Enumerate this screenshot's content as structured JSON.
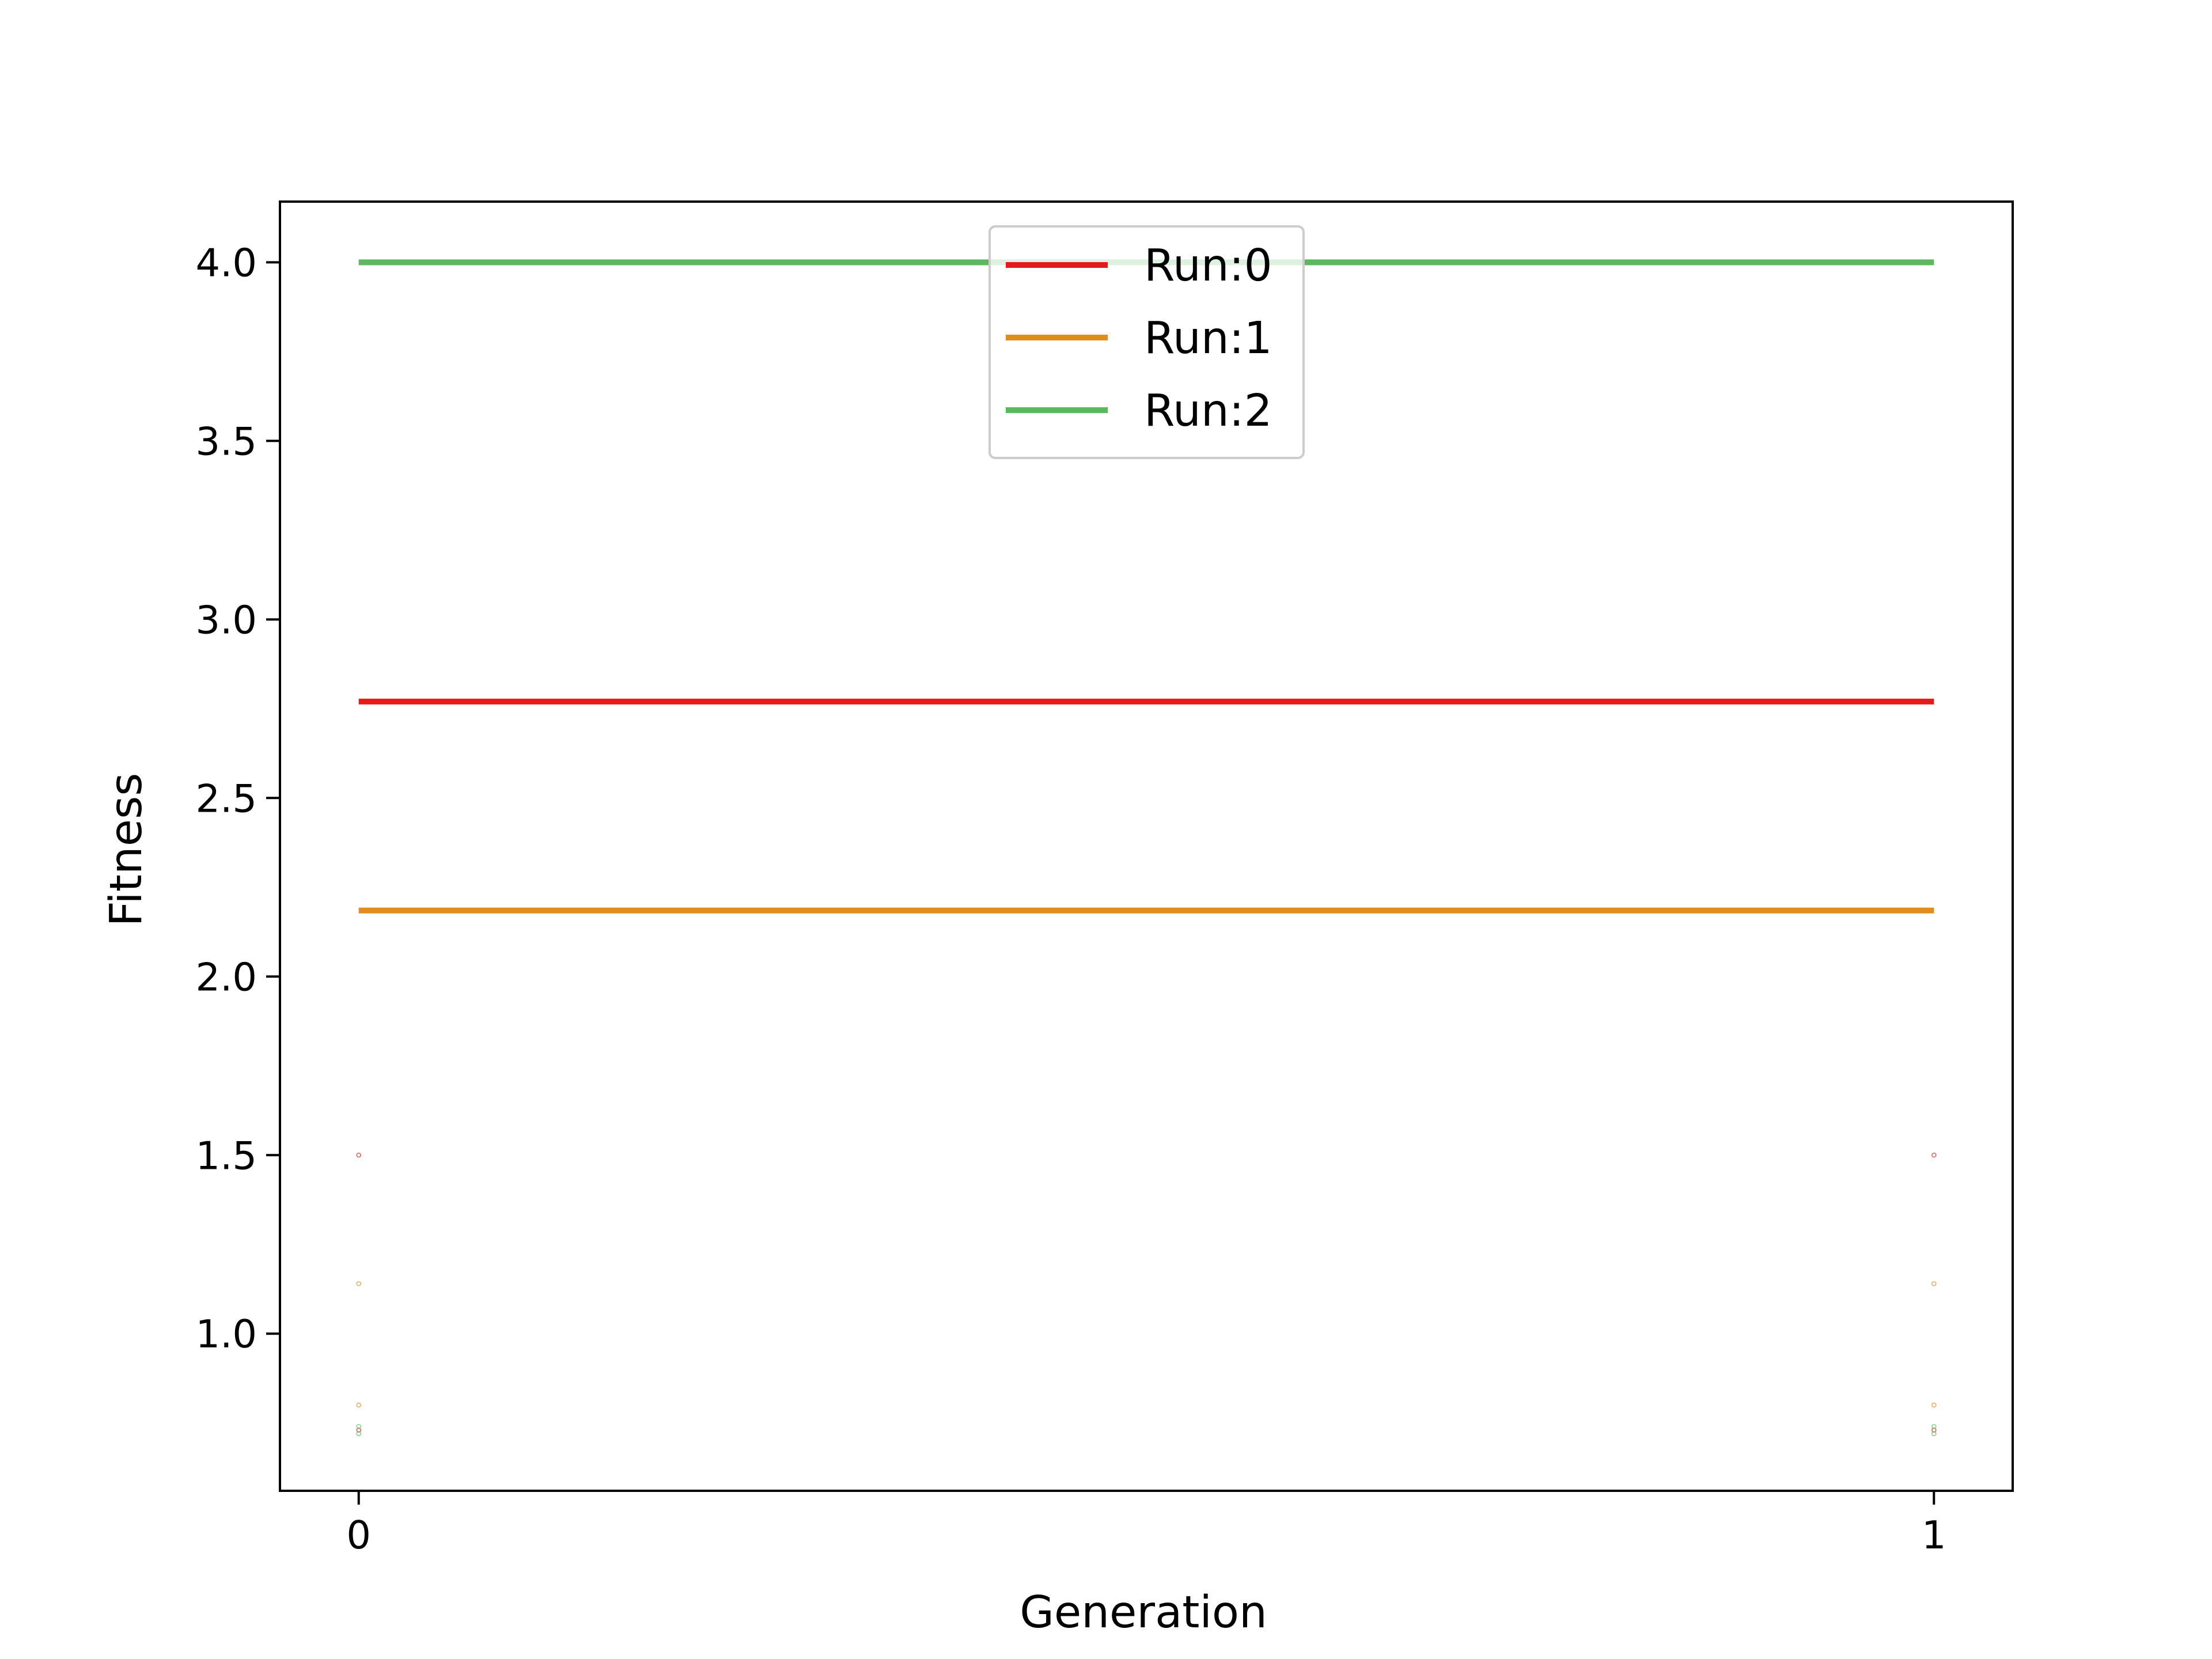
{
  "chart_data": {
    "type": "line",
    "title": "",
    "xlabel": "Generation",
    "ylabel": "Fitness",
    "x": [
      0,
      1
    ],
    "xticks": [
      "0",
      "1"
    ],
    "yticks": [
      "1.0",
      "1.5",
      "2.0",
      "2.5",
      "3.0",
      "3.5",
      "4.0"
    ],
    "xlim": [
      -0.05,
      1.05
    ],
    "ylim": [
      0.56,
      4.17
    ],
    "grid": false,
    "legend_position": "upper center",
    "series": [
      {
        "name": "Run:0",
        "color": "#e41a1c",
        "values": [
          2.77,
          2.77
        ]
      },
      {
        "name": "Run:1",
        "color": "#e08c1f",
        "values": [
          2.185,
          2.185
        ]
      },
      {
        "name": "Run:2",
        "color": "#5cb85c",
        "values": [
          4.0,
          4.0
        ]
      }
    ],
    "scatter_points": [
      {
        "series": "Run:0",
        "color": "#e41a1c",
        "x": [
          0,
          0,
          1,
          1
        ],
        "y": [
          1.5,
          0.73,
          1.5,
          0.73
        ]
      },
      {
        "series": "Run:1",
        "color": "#e08c1f",
        "x": [
          0,
          0,
          1,
          1
        ],
        "y": [
          1.14,
          0.8,
          1.14,
          0.8
        ]
      },
      {
        "series": "Run:2",
        "color": "#5cb85c",
        "x": [
          0,
          0,
          1,
          1
        ],
        "y": [
          0.74,
          0.72,
          0.74,
          0.72
        ]
      }
    ]
  }
}
